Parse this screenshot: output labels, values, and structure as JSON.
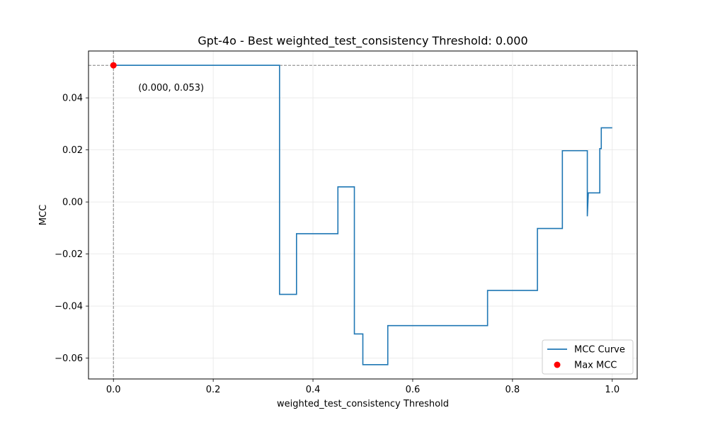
{
  "chart_data": {
    "type": "line",
    "title": "Gpt-4o - Best weighted_test_consistency Threshold: 0.000",
    "xlabel": "weighted_test_consistency Threshold",
    "ylabel": "MCC",
    "xlim": [
      -0.05,
      1.05
    ],
    "ylim": [
      -0.068,
      0.058
    ],
    "xticks": [
      0.0,
      0.2,
      0.4,
      0.6,
      0.8,
      1.0
    ],
    "xtick_labels": [
      "0.0",
      "0.2",
      "0.4",
      "0.6",
      "0.8",
      "1.0"
    ],
    "yticks": [
      -0.06,
      -0.04,
      -0.02,
      0.0,
      0.02,
      0.04
    ],
    "ytick_labels": [
      "−0.06",
      "−0.04",
      "−0.02",
      "0.00",
      "0.02",
      "0.04"
    ],
    "grid": true,
    "legend_position": "lower-right",
    "series": [
      {
        "name": "MCC Curve",
        "color": "#1f77b4",
        "x": [
          0.0,
          0.333,
          0.333,
          0.367,
          0.367,
          0.45,
          0.45,
          0.483,
          0.483,
          0.5,
          0.5,
          0.55,
          0.55,
          0.75,
          0.75,
          0.85,
          0.85,
          0.9,
          0.9,
          0.95,
          0.95,
          0.952,
          0.952,
          0.975,
          0.975,
          0.978,
          0.978,
          1.0
        ],
        "y": [
          0.0525,
          0.0525,
          -0.0355,
          -0.0355,
          -0.0122,
          -0.0122,
          0.0058,
          0.0058,
          -0.0507,
          -0.0507,
          -0.0625,
          -0.0625,
          -0.0475,
          -0.0475,
          -0.034,
          -0.034,
          -0.0102,
          -0.0102,
          0.0197,
          0.0197,
          -0.0055,
          0.0035,
          0.0035,
          0.0035,
          0.0205,
          0.0205,
          0.0285,
          0.0285
        ]
      }
    ],
    "max_point": {
      "name": "Max MCC",
      "color": "#ff0000",
      "x": 0.0,
      "y": 0.0525,
      "annotation": "(0.000, 0.053)"
    },
    "reference_lines": {
      "color": "#808080",
      "vertical_x": 0.0,
      "horizontal_y": 0.0525
    }
  }
}
